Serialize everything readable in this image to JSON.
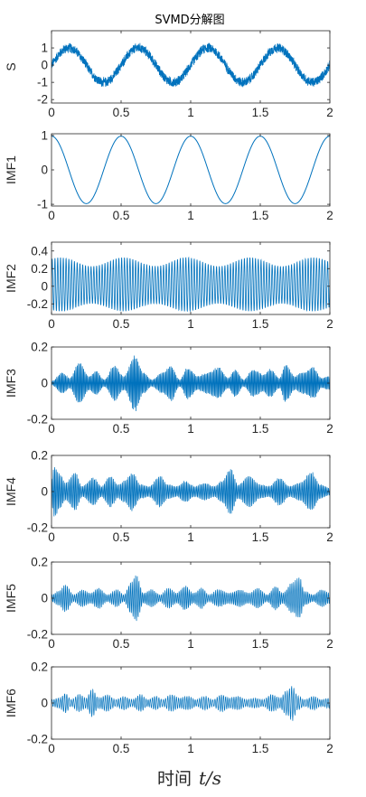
{
  "figure": {
    "title": "SVMD分解图",
    "xlabel_text": "时间",
    "xlabel_math": "t/s"
  },
  "style": {
    "line_color": "#0072BD",
    "axis_color": "#262626"
  },
  "chart_data": [
    {
      "type": "line",
      "ylabel": "S",
      "xlim": [
        0,
        2
      ],
      "ylim": [
        -2.2,
        2.0
      ],
      "x_ticks": [
        "0",
        "0.5",
        "1",
        "1.5",
        "2"
      ],
      "y_ticks": [
        {
          "v": 1,
          "label": "1"
        },
        {
          "v": 0,
          "label": "0"
        },
        {
          "v": -1,
          "label": "-1"
        },
        {
          "v": -2,
          "label": "-2"
        }
      ],
      "signal": {
        "kind": "sine_noise",
        "freq": 2,
        "amp": 1.0,
        "noise": 0.32
      },
      "stroke_width": 0.7
    },
    {
      "type": "line",
      "ylabel": "IMF1",
      "xlim": [
        0,
        2
      ],
      "ylim": [
        -1.05,
        1.05
      ],
      "x_ticks": [
        "0",
        "0.5",
        "1",
        "1.5",
        "2"
      ],
      "y_ticks": [
        {
          "v": 1,
          "label": "1"
        },
        {
          "v": 0,
          "label": "0"
        },
        {
          "v": -1,
          "label": "-1"
        }
      ],
      "signal": {
        "kind": "cosine",
        "freq": 2,
        "amp": 0.98
      },
      "stroke_width": 1.0
    },
    {
      "type": "line",
      "ylabel": "IMF2",
      "xlim": [
        0,
        2
      ],
      "ylim": [
        -0.32,
        0.5
      ],
      "x_ticks": [
        "0",
        "0.5",
        "1",
        "1.5",
        "2"
      ],
      "y_ticks": [
        {
          "v": 0.4,
          "label": "0.4"
        },
        {
          "v": 0.2,
          "label": "0.2"
        },
        {
          "v": 0,
          "label": "0"
        },
        {
          "v": -0.2,
          "label": "-0.2"
        }
      ],
      "signal": {
        "kind": "am_tone",
        "freq": 50,
        "amp": 0.24,
        "mod_depth": 0.18,
        "mod_freq": 2.2
      },
      "stroke_width": 0.8
    },
    {
      "type": "line",
      "ylabel": "IMF3",
      "xlim": [
        0,
        2
      ],
      "ylim": [
        -0.2,
        0.2
      ],
      "x_ticks": [
        "0",
        "0.5",
        "1",
        "1.5",
        "2"
      ],
      "y_ticks": [
        {
          "v": 0.2,
          "label": "0.2"
        },
        {
          "v": 0,
          "label": "0"
        },
        {
          "v": -0.2,
          "label": "-0.2"
        }
      ],
      "signal": {
        "kind": "noise_band",
        "freq": 110
      },
      "envelope": [
        [
          0,
          0.01
        ],
        [
          0.08,
          0.06
        ],
        [
          0.13,
          0.03
        ],
        [
          0.2,
          0.12
        ],
        [
          0.27,
          0.04
        ],
        [
          0.32,
          0.07
        ],
        [
          0.38,
          0.02
        ],
        [
          0.45,
          0.1
        ],
        [
          0.52,
          0.04
        ],
        [
          0.6,
          0.16
        ],
        [
          0.66,
          0.06
        ],
        [
          0.72,
          0.02
        ],
        [
          0.8,
          0.06
        ],
        [
          0.86,
          0.1
        ],
        [
          0.92,
          0.02
        ],
        [
          0.98,
          0.09
        ],
        [
          1.05,
          0.04
        ],
        [
          1.12,
          0.06
        ],
        [
          1.2,
          0.09
        ],
        [
          1.27,
          0.03
        ],
        [
          1.32,
          0.08
        ],
        [
          1.38,
          0.02
        ],
        [
          1.45,
          0.08
        ],
        [
          1.52,
          0.05
        ],
        [
          1.57,
          0.08
        ],
        [
          1.64,
          0.03
        ],
        [
          1.68,
          0.11
        ],
        [
          1.75,
          0.04
        ],
        [
          1.8,
          0.06
        ],
        [
          1.88,
          0.09
        ],
        [
          1.94,
          0.03
        ],
        [
          2.0,
          0.04
        ]
      ],
      "stroke_width": 0.7
    },
    {
      "type": "line",
      "ylabel": "IMF4",
      "xlim": [
        0,
        2
      ],
      "ylim": [
        -0.2,
        0.2
      ],
      "x_ticks": [
        "0",
        "0.5",
        "1",
        "1.5",
        "2"
      ],
      "y_ticks": [
        {
          "v": 0.2,
          "label": "0.2"
        },
        {
          "v": 0,
          "label": "0"
        },
        {
          "v": -0.2,
          "label": "-0.2"
        }
      ],
      "signal": {
        "kind": "noise_band",
        "freq": 95
      },
      "envelope": [
        [
          0,
          0.07
        ],
        [
          0.02,
          0.15
        ],
        [
          0.06,
          0.1
        ],
        [
          0.1,
          0.05
        ],
        [
          0.17,
          0.11
        ],
        [
          0.22,
          0.03
        ],
        [
          0.3,
          0.08
        ],
        [
          0.36,
          0.03
        ],
        [
          0.42,
          0.09
        ],
        [
          0.48,
          0.04
        ],
        [
          0.52,
          0.06
        ],
        [
          0.58,
          0.11
        ],
        [
          0.64,
          0.04
        ],
        [
          0.7,
          0.03
        ],
        [
          0.78,
          0.09
        ],
        [
          0.84,
          0.04
        ],
        [
          0.9,
          0.03
        ],
        [
          0.96,
          0.06
        ],
        [
          1.03,
          0.03
        ],
        [
          1.1,
          0.05
        ],
        [
          1.17,
          0.03
        ],
        [
          1.22,
          0.06
        ],
        [
          1.29,
          0.13
        ],
        [
          1.34,
          0.04
        ],
        [
          1.42,
          0.09
        ],
        [
          1.5,
          0.04
        ],
        [
          1.56,
          0.03
        ],
        [
          1.64,
          0.08
        ],
        [
          1.71,
          0.03
        ],
        [
          1.78,
          0.05
        ],
        [
          1.87,
          0.11
        ],
        [
          1.93,
          0.04
        ],
        [
          2.0,
          0.02
        ]
      ],
      "stroke_width": 0.7
    },
    {
      "type": "line",
      "ylabel": "IMF5",
      "xlim": [
        0,
        2
      ],
      "ylim": [
        -0.2,
        0.2
      ],
      "x_ticks": [
        "0",
        "0.5",
        "1",
        "1.5",
        "2"
      ],
      "y_ticks": [
        {
          "v": 0.2,
          "label": "0.2"
        },
        {
          "v": 0,
          "label": "0"
        },
        {
          "v": -0.2,
          "label": "-0.2"
        }
      ],
      "signal": {
        "kind": "noise_band",
        "freq": 80
      },
      "envelope": [
        [
          0,
          0.02
        ],
        [
          0.05,
          0.04
        ],
        [
          0.1,
          0.08
        ],
        [
          0.16,
          0.02
        ],
        [
          0.22,
          0.05
        ],
        [
          0.28,
          0.03
        ],
        [
          0.34,
          0.06
        ],
        [
          0.4,
          0.02
        ],
        [
          0.47,
          0.05
        ],
        [
          0.52,
          0.02
        ],
        [
          0.57,
          0.09
        ],
        [
          0.61,
          0.13
        ],
        [
          0.66,
          0.03
        ],
        [
          0.72,
          0.05
        ],
        [
          0.78,
          0.02
        ],
        [
          0.84,
          0.06
        ],
        [
          0.9,
          0.03
        ],
        [
          0.96,
          0.07
        ],
        [
          1.02,
          0.03
        ],
        [
          1.08,
          0.06
        ],
        [
          1.13,
          0.02
        ],
        [
          1.2,
          0.05
        ],
        [
          1.28,
          0.03
        ],
        [
          1.35,
          0.05
        ],
        [
          1.42,
          0.03
        ],
        [
          1.48,
          0.06
        ],
        [
          1.55,
          0.02
        ],
        [
          1.61,
          0.07
        ],
        [
          1.66,
          0.03
        ],
        [
          1.73,
          0.09
        ],
        [
          1.78,
          0.12
        ],
        [
          1.82,
          0.04
        ],
        [
          1.88,
          0.02
        ],
        [
          1.94,
          0.05
        ],
        [
          2.0,
          0.03
        ]
      ],
      "stroke_width": 0.7
    },
    {
      "type": "line",
      "ylabel": "IMF6",
      "xlim": [
        0,
        2
      ],
      "ylim": [
        -0.2,
        0.2
      ],
      "x_ticks": [
        "0",
        "0.5",
        "1",
        "1.5",
        "2"
      ],
      "y_ticks": [
        {
          "v": 0.2,
          "label": "0.2"
        },
        {
          "v": 0,
          "label": "0"
        },
        {
          "v": -0.2,
          "label": "-0.2"
        }
      ],
      "signal": {
        "kind": "noise_band",
        "freq": 65
      },
      "envelope": [
        [
          0,
          0.02
        ],
        [
          0.06,
          0.03
        ],
        [
          0.1,
          0.06
        ],
        [
          0.14,
          0.02
        ],
        [
          0.2,
          0.05
        ],
        [
          0.25,
          0.03
        ],
        [
          0.29,
          0.08
        ],
        [
          0.34,
          0.03
        ],
        [
          0.4,
          0.05
        ],
        [
          0.46,
          0.02
        ],
        [
          0.52,
          0.04
        ],
        [
          0.58,
          0.02
        ],
        [
          0.64,
          0.05
        ],
        [
          0.69,
          0.02
        ],
        [
          0.75,
          0.04
        ],
        [
          0.8,
          0.02
        ],
        [
          0.86,
          0.05
        ],
        [
          0.92,
          0.03
        ],
        [
          0.98,
          0.04
        ],
        [
          1.04,
          0.02
        ],
        [
          1.1,
          0.04
        ],
        [
          1.16,
          0.02
        ],
        [
          1.22,
          0.05
        ],
        [
          1.28,
          0.03
        ],
        [
          1.34,
          0.04
        ],
        [
          1.4,
          0.02
        ],
        [
          1.46,
          0.03
        ],
        [
          1.52,
          0.02
        ],
        [
          1.58,
          0.05
        ],
        [
          1.64,
          0.03
        ],
        [
          1.69,
          0.07
        ],
        [
          1.73,
          0.1
        ],
        [
          1.77,
          0.04
        ],
        [
          1.82,
          0.02
        ],
        [
          1.88,
          0.04
        ],
        [
          1.94,
          0.02
        ],
        [
          2.0,
          0.03
        ]
      ],
      "stroke_width": 0.7
    }
  ]
}
